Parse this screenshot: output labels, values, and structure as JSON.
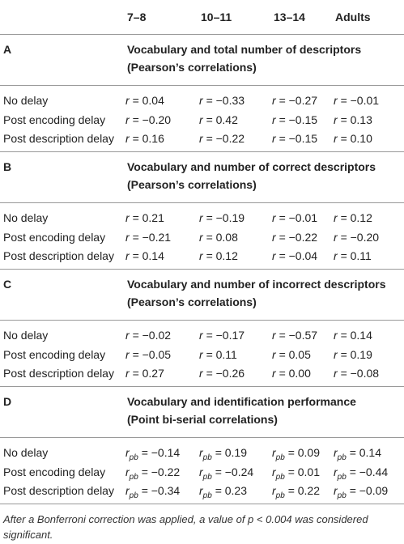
{
  "header": {
    "columns": [
      "7–8",
      "10–11",
      "13–14",
      "Adults"
    ]
  },
  "sections": [
    {
      "label": "A",
      "title": "Vocabulary and total number of descriptors",
      "subtitle": "(Pearson’s correlations)",
      "symbol": "r",
      "rows": [
        {
          "label": "No delay",
          "cells": [
            "= 0.04",
            "= −0.33",
            "= −0.27",
            "= −0.01"
          ]
        },
        {
          "label": "Post encoding delay",
          "cells": [
            "= −0.20",
            "= 0.42",
            "= −0.15",
            "= 0.13"
          ]
        },
        {
          "label": "Post description delay",
          "cells": [
            "= 0.16",
            "= −0.22",
            "= −0.15",
            "= 0.10"
          ]
        }
      ]
    },
    {
      "label": "B",
      "title": "Vocabulary and number of correct descriptors",
      "subtitle": "(Pearson’s correlations)",
      "symbol": "r",
      "rows": [
        {
          "label": "No delay",
          "cells": [
            "= 0.21",
            "= −0.19",
            "= −0.01",
            "= 0.12"
          ]
        },
        {
          "label": "Post encoding delay",
          "cells": [
            "= −0.21",
            "= 0.08",
            "= −0.22",
            "= −0.20"
          ]
        },
        {
          "label": "Post description delay",
          "cells": [
            "= 0.14",
            "= 0.12",
            "= −0.04",
            "= 0.11"
          ]
        }
      ]
    },
    {
      "label": "C",
      "title": "Vocabulary and number of incorrect descriptors",
      "subtitle": "(Pearson’s correlations)",
      "symbol": "r",
      "rows": [
        {
          "label": "No delay",
          "cells": [
            "= −0.02",
            "= −0.17",
            "= −0.57",
            "= 0.14"
          ]
        },
        {
          "label": "Post encoding delay",
          "cells": [
            "= −0.05",
            "= 0.11",
            "= 0.05",
            "= 0.19"
          ]
        },
        {
          "label": "Post description delay",
          "cells": [
            "= 0.27",
            "= −0.26",
            "= 0.00",
            "= −0.08"
          ]
        }
      ]
    },
    {
      "label": "D",
      "title": "Vocabulary and identification performance",
      "subtitle": "(Point bi-serial correlations)",
      "symbol": "r",
      "subscript": "pb",
      "rows": [
        {
          "label": "No delay",
          "cells": [
            "= −0.14",
            "= 0.19",
            "= 0.09",
            "= 0.14"
          ]
        },
        {
          "label": "Post encoding delay",
          "cells": [
            "= −0.22",
            "= −0.24",
            "= 0.01",
            "= −0.44"
          ]
        },
        {
          "label": "Post description delay",
          "cells": [
            "= −0.34",
            "= 0.23",
            "= 0.22",
            "= −0.09"
          ]
        }
      ]
    }
  ],
  "footnote": "After a Bonferroni correction was applied, a value of p < 0.004 was considered significant."
}
